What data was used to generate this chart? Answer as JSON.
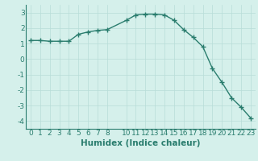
{
  "x": [
    0,
    1,
    2,
    3,
    4,
    5,
    6,
    7,
    8,
    10,
    11,
    12,
    13,
    14,
    15,
    16,
    17,
    18,
    19,
    20,
    21,
    22,
    23
  ],
  "y": [
    1.2,
    1.2,
    1.15,
    1.15,
    1.15,
    1.6,
    1.75,
    1.85,
    1.9,
    2.5,
    2.85,
    2.9,
    2.9,
    2.85,
    2.5,
    1.9,
    1.4,
    0.8,
    -0.6,
    -1.5,
    -2.5,
    -3.1,
    -3.8
  ],
  "line_color": "#2a7d6e",
  "marker": "+",
  "marker_size": 4,
  "linewidth": 1.0,
  "xlabel": "Humidex (Indice chaleur)",
  "xlabel_fontsize": 7.5,
  "background_color": "#d5f0eb",
  "grid_color": "#b8ddd8",
  "tick_color": "#2a7d6e",
  "ylim": [
    -4.5,
    3.5
  ],
  "xlim": [
    -0.5,
    23.5
  ],
  "yticks": [
    -4,
    -3,
    -2,
    -1,
    0,
    1,
    2,
    3
  ],
  "xticks": [
    0,
    1,
    2,
    3,
    4,
    5,
    6,
    7,
    8,
    10,
    11,
    12,
    13,
    14,
    15,
    16,
    17,
    18,
    19,
    20,
    21,
    22,
    23
  ],
  "tick_fontsize": 6.5,
  "spine_color": "#2a7d6e"
}
